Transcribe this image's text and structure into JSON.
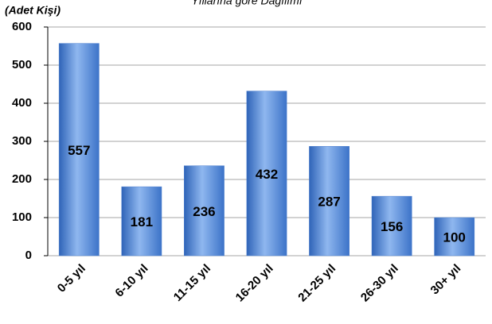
{
  "chart_data": {
    "type": "bar",
    "title": "Yıllarına göre Dağılımı",
    "y_label": "(Adet Kişi)",
    "categories": [
      "0-5 yıl",
      "6-10 yıl",
      "11-15 yıl",
      "16-20 yıl",
      "21-25 yıl",
      "26-30 yıl",
      "30+ yıl"
    ],
    "values": [
      557,
      181,
      236,
      432,
      287,
      156,
      100
    ],
    "color": "#4f81d0",
    "ylim": [
      0,
      600
    ],
    "yticks": [
      0,
      100,
      200,
      300,
      400,
      500,
      600
    ],
    "grid": true
  }
}
